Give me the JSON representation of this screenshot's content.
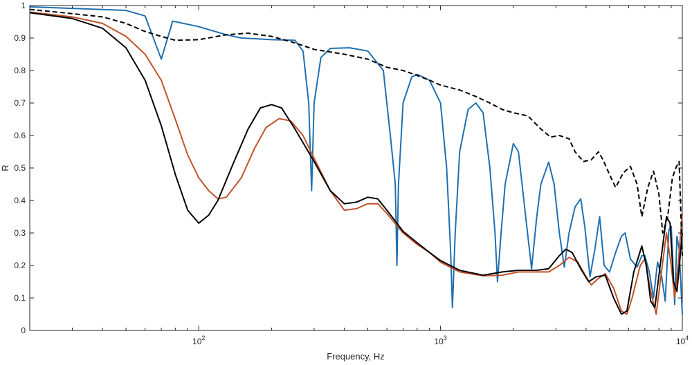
{
  "chart_data": {
    "type": "line",
    "xlabel": "Frequency, Hz",
    "ylabel": "R",
    "xscale": "log",
    "xlim": [
      20,
      10000
    ],
    "ylim": [
      0,
      1
    ],
    "grid": false,
    "xticks": [
      {
        "value": 100,
        "base": "10",
        "exp": "2"
      },
      {
        "value": 1000,
        "base": "10",
        "exp": "3"
      },
      {
        "value": 10000,
        "base": "10",
        "exp": "4"
      }
    ],
    "yticks": [
      {
        "value": 0,
        "label": "0"
      },
      {
        "value": 0.1,
        "label": "0.1"
      },
      {
        "value": 0.2,
        "label": "0.2"
      },
      {
        "value": 0.3,
        "label": "0.3"
      },
      {
        "value": 0.4,
        "label": "0.4"
      },
      {
        "value": 0.5,
        "label": "0.5"
      },
      {
        "value": 0.6,
        "label": "0.6"
      },
      {
        "value": 0.7,
        "label": "0.7"
      },
      {
        "value": 0.8,
        "label": "0.8"
      },
      {
        "value": 0.9,
        "label": "0.9"
      },
      {
        "value": 1,
        "label": "1"
      }
    ],
    "series": [
      {
        "color": "#1f6fb0",
        "style": "solid",
        "points": [
          [
            20,
            0.996
          ],
          [
            50,
            0.985
          ],
          [
            60,
            0.968
          ],
          [
            70,
            0.835
          ],
          [
            78,
            0.952
          ],
          [
            100,
            0.935
          ],
          [
            130,
            0.91
          ],
          [
            150,
            0.9
          ],
          [
            200,
            0.895
          ],
          [
            250,
            0.893
          ],
          [
            270,
            0.86
          ],
          [
            285,
            0.7
          ],
          [
            293,
            0.43
          ],
          [
            300,
            0.7
          ],
          [
            320,
            0.84
          ],
          [
            350,
            0.868
          ],
          [
            420,
            0.87
          ],
          [
            500,
            0.86
          ],
          [
            580,
            0.8
          ],
          [
            620,
            0.6
          ],
          [
            650,
            0.45
          ],
          [
            660,
            0.2
          ],
          [
            670,
            0.45
          ],
          [
            700,
            0.7
          ],
          [
            760,
            0.78
          ],
          [
            800,
            0.788
          ],
          [
            900,
            0.77
          ],
          [
            1000,
            0.7
          ],
          [
            1060,
            0.5
          ],
          [
            1100,
            0.25
          ],
          [
            1120,
            0.07
          ],
          [
            1150,
            0.3
          ],
          [
            1200,
            0.55
          ],
          [
            1300,
            0.68
          ],
          [
            1400,
            0.7
          ],
          [
            1500,
            0.67
          ],
          [
            1600,
            0.5
          ],
          [
            1680,
            0.3
          ],
          [
            1720,
            0.15
          ],
          [
            1780,
            0.3
          ],
          [
            1850,
            0.45
          ],
          [
            2000,
            0.575
          ],
          [
            2100,
            0.55
          ],
          [
            2250,
            0.35
          ],
          [
            2380,
            0.19
          ],
          [
            2500,
            0.35
          ],
          [
            2600,
            0.45
          ],
          [
            2800,
            0.518
          ],
          [
            2950,
            0.45
          ],
          [
            3100,
            0.3
          ],
          [
            3250,
            0.195
          ],
          [
            3400,
            0.3
          ],
          [
            3600,
            0.38
          ],
          [
            3800,
            0.405
          ],
          [
            3950,
            0.32
          ],
          [
            4150,
            0.165
          ],
          [
            4350,
            0.25
          ],
          [
            4550,
            0.35
          ],
          [
            4750,
            0.2
          ],
          [
            5000,
            0.18
          ],
          [
            5300,
            0.24
          ],
          [
            5600,
            0.29
          ],
          [
            5800,
            0.3
          ],
          [
            6100,
            0.22
          ],
          [
            6500,
            0.195
          ],
          [
            6800,
            0.23
          ],
          [
            7000,
            0.23
          ],
          [
            7300,
            0.18
          ],
          [
            7600,
            0.1
          ],
          [
            7900,
            0.21
          ],
          [
            8200,
            0.17
          ],
          [
            8500,
            0.09
          ],
          [
            8800,
            0.31
          ],
          [
            9000,
            0.32
          ],
          [
            9300,
            0.08
          ],
          [
            9500,
            0.29
          ],
          [
            9700,
            0.25
          ],
          [
            10000,
            0.05
          ]
        ]
      },
      {
        "color": "#c0522a",
        "style": "solid",
        "points": [
          [
            20,
            0.98
          ],
          [
            30,
            0.965
          ],
          [
            40,
            0.945
          ],
          [
            50,
            0.905
          ],
          [
            60,
            0.85
          ],
          [
            70,
            0.77
          ],
          [
            80,
            0.65
          ],
          [
            90,
            0.54
          ],
          [
            100,
            0.47
          ],
          [
            110,
            0.43
          ],
          [
            120,
            0.405
          ],
          [
            130,
            0.41
          ],
          [
            150,
            0.47
          ],
          [
            170,
            0.56
          ],
          [
            190,
            0.625
          ],
          [
            215,
            0.652
          ],
          [
            240,
            0.645
          ],
          [
            270,
            0.6
          ],
          [
            300,
            0.53
          ],
          [
            350,
            0.43
          ],
          [
            400,
            0.37
          ],
          [
            450,
            0.375
          ],
          [
            500,
            0.39
          ],
          [
            550,
            0.39
          ],
          [
            600,
            0.36
          ],
          [
            700,
            0.3
          ],
          [
            800,
            0.265
          ],
          [
            900,
            0.24
          ],
          [
            1000,
            0.21
          ],
          [
            1200,
            0.18
          ],
          [
            1500,
            0.168
          ],
          [
            1800,
            0.17
          ],
          [
            2100,
            0.18
          ],
          [
            2500,
            0.18
          ],
          [
            2800,
            0.18
          ],
          [
            3100,
            0.2
          ],
          [
            3400,
            0.225
          ],
          [
            3700,
            0.21
          ],
          [
            4000,
            0.165
          ],
          [
            4200,
            0.14
          ],
          [
            4500,
            0.16
          ],
          [
            4800,
            0.175
          ],
          [
            5200,
            0.13
          ],
          [
            5600,
            0.06
          ],
          [
            5900,
            0.05
          ],
          [
            6200,
            0.1
          ],
          [
            6700,
            0.2
          ],
          [
            7000,
            0.22
          ],
          [
            7400,
            0.12
          ],
          [
            7800,
            0.05
          ],
          [
            8200,
            0.18
          ],
          [
            8600,
            0.3
          ],
          [
            9000,
            0.2
          ],
          [
            9300,
            0.1
          ],
          [
            9600,
            0.2
          ],
          [
            10000,
            0.36
          ]
        ]
      },
      {
        "color": "#000000",
        "style": "solid",
        "points": [
          [
            20,
            0.978
          ],
          [
            30,
            0.96
          ],
          [
            40,
            0.93
          ],
          [
            50,
            0.87
          ],
          [
            60,
            0.77
          ],
          [
            70,
            0.63
          ],
          [
            80,
            0.48
          ],
          [
            90,
            0.37
          ],
          [
            100,
            0.33
          ],
          [
            110,
            0.355
          ],
          [
            120,
            0.4
          ],
          [
            140,
            0.52
          ],
          [
            160,
            0.62
          ],
          [
            180,
            0.685
          ],
          [
            200,
            0.695
          ],
          [
            220,
            0.685
          ],
          [
            250,
            0.62
          ],
          [
            300,
            0.52
          ],
          [
            350,
            0.43
          ],
          [
            400,
            0.39
          ],
          [
            450,
            0.395
          ],
          [
            500,
            0.41
          ],
          [
            550,
            0.405
          ],
          [
            600,
            0.37
          ],
          [
            700,
            0.305
          ],
          [
            800,
            0.27
          ],
          [
            900,
            0.24
          ],
          [
            1000,
            0.215
          ],
          [
            1200,
            0.185
          ],
          [
            1500,
            0.17
          ],
          [
            1800,
            0.18
          ],
          [
            2100,
            0.185
          ],
          [
            2500,
            0.185
          ],
          [
            2800,
            0.19
          ],
          [
            3100,
            0.23
          ],
          [
            3300,
            0.25
          ],
          [
            3500,
            0.24
          ],
          [
            3800,
            0.19
          ],
          [
            4100,
            0.15
          ],
          [
            4400,
            0.165
          ],
          [
            4800,
            0.17
          ],
          [
            5200,
            0.1
          ],
          [
            5600,
            0.05
          ],
          [
            5900,
            0.06
          ],
          [
            6300,
            0.18
          ],
          [
            6800,
            0.26
          ],
          [
            7100,
            0.2
          ],
          [
            7400,
            0.09
          ],
          [
            7700,
            0.07
          ],
          [
            8100,
            0.2
          ],
          [
            8600,
            0.35
          ],
          [
            8900,
            0.33
          ],
          [
            9200,
            0.15
          ],
          [
            9500,
            0.12
          ],
          [
            10000,
            0.3
          ]
        ]
      },
      {
        "color": "#000000",
        "style": "dashed",
        "points": [
          [
            20,
            0.988
          ],
          [
            30,
            0.975
          ],
          [
            40,
            0.965
          ],
          [
            50,
            0.945
          ],
          [
            60,
            0.92
          ],
          [
            70,
            0.905
          ],
          [
            80,
            0.893
          ],
          [
            100,
            0.895
          ],
          [
            130,
            0.91
          ],
          [
            160,
            0.915
          ],
          [
            200,
            0.905
          ],
          [
            250,
            0.885
          ],
          [
            300,
            0.865
          ],
          [
            400,
            0.85
          ],
          [
            500,
            0.835
          ],
          [
            600,
            0.81
          ],
          [
            700,
            0.8
          ],
          [
            800,
            0.785
          ],
          [
            900,
            0.77
          ],
          [
            1000,
            0.755
          ],
          [
            1200,
            0.74
          ],
          [
            1400,
            0.72
          ],
          [
            1600,
            0.7
          ],
          [
            1800,
            0.68
          ],
          [
            2000,
            0.67
          ],
          [
            2300,
            0.66
          ],
          [
            2600,
            0.62
          ],
          [
            2850,
            0.595
          ],
          [
            3100,
            0.6
          ],
          [
            3400,
            0.59
          ],
          [
            3600,
            0.55
          ],
          [
            3900,
            0.52
          ],
          [
            4200,
            0.525
          ],
          [
            4500,
            0.55
          ],
          [
            4700,
            0.525
          ],
          [
            5000,
            0.48
          ],
          [
            5300,
            0.44
          ],
          [
            5700,
            0.485
          ],
          [
            6100,
            0.505
          ],
          [
            6500,
            0.45
          ],
          [
            6800,
            0.35
          ],
          [
            7200,
            0.44
          ],
          [
            7600,
            0.49
          ],
          [
            8000,
            0.42
          ],
          [
            8300,
            0.3
          ],
          [
            8700,
            0.35
          ],
          [
            9100,
            0.47
          ],
          [
            9400,
            0.5
          ],
          [
            9700,
            0.52
          ],
          [
            10000,
            0.23
          ]
        ]
      }
    ]
  }
}
